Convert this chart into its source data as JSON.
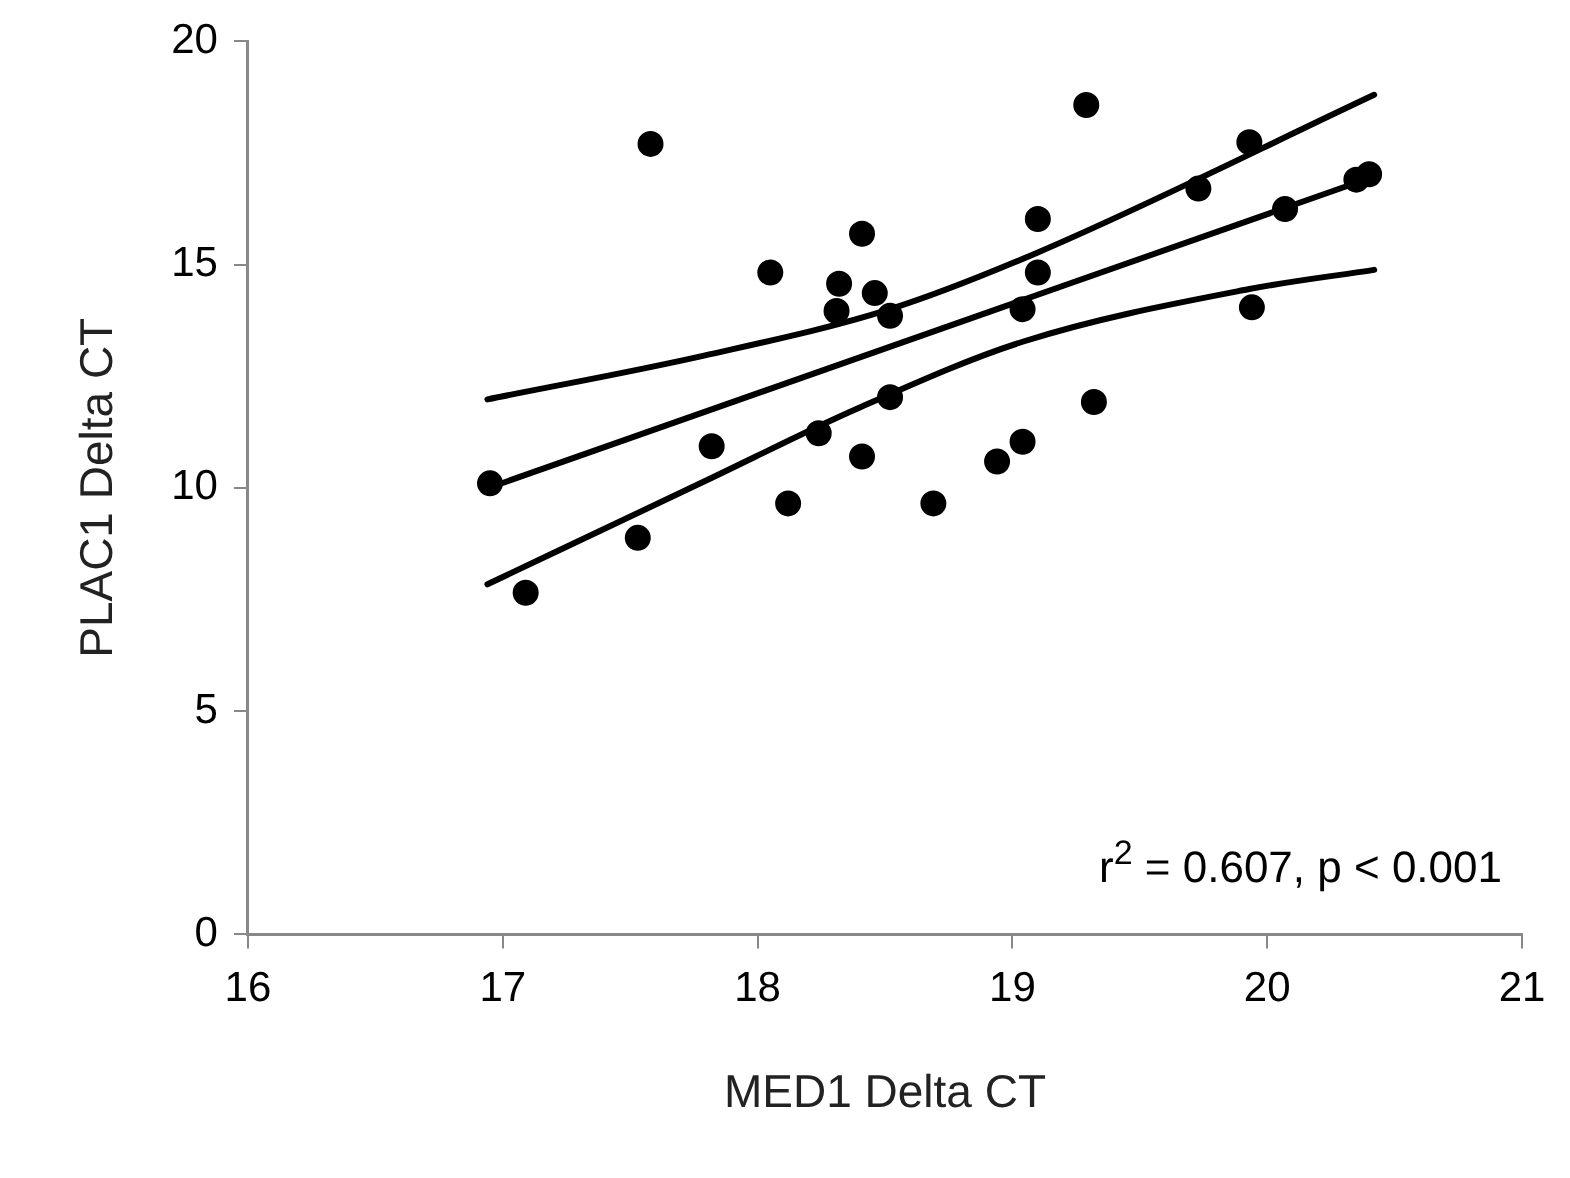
{
  "chart_data": {
    "type": "scatter",
    "xlabel": "MED1 Delta CT",
    "ylabel": "PLAC1 Delta CT",
    "xlim": [
      16,
      21
    ],
    "xticks": [
      16,
      17,
      18,
      19,
      20,
      21
    ],
    "ylim": [
      0,
      20
    ],
    "yticks": [
      0,
      5,
      10,
      15,
      20
    ],
    "grid": false,
    "legend": false,
    "annotations": [
      "r$^{2}$ = 0.607, p < 0.001"
    ],
    "series": [
      {
        "type": "scatter",
        "marker": "circle",
        "color": "#000000",
        "x": [
          16.95,
          17.09,
          17.53,
          17.58,
          17.82,
          18.05,
          18.12,
          18.24,
          18.31,
          18.32,
          18.41,
          18.41,
          18.46,
          18.52,
          18.52,
          18.69,
          18.94,
          19.04,
          19.04,
          19.1,
          19.1,
          19.29,
          19.32,
          19.73,
          19.93,
          19.94,
          20.07,
          20.35,
          20.4
        ],
        "values": [
          10.1,
          7.65,
          8.88,
          17.7,
          10.93,
          14.82,
          9.65,
          11.22,
          13.96,
          14.57,
          15.69,
          10.7,
          14.36,
          13.85,
          12.03,
          9.65,
          10.59,
          11.03,
          14.0,
          14.82,
          16.02,
          18.57,
          11.92,
          16.7,
          17.74,
          14.04,
          16.24,
          16.9,
          17.02
        ]
      },
      {
        "type": "line",
        "marker": "none",
        "line_style": "solid",
        "color": "#000000",
        "x": [
          16.94,
          20.42
        ],
        "values": [
          9.99,
          16.97
        ]
      },
      {
        "type": "line",
        "marker": "none",
        "line_style": "solid",
        "color": "#000000",
        "x": [
          16.94,
          17.79,
          18.52,
          19.1,
          20.42
        ],
        "values": [
          11.98,
          12.96,
          14.0,
          15.27,
          18.8
        ]
      },
      {
        "type": "line",
        "marker": "none",
        "line_style": "solid",
        "color": "#000000",
        "x": [
          16.94,
          17.79,
          18.39,
          19.04,
          19.93,
          20.42
        ],
        "values": [
          7.84,
          10.14,
          11.77,
          13.27,
          14.45,
          14.88
        ]
      }
    ]
  }
}
